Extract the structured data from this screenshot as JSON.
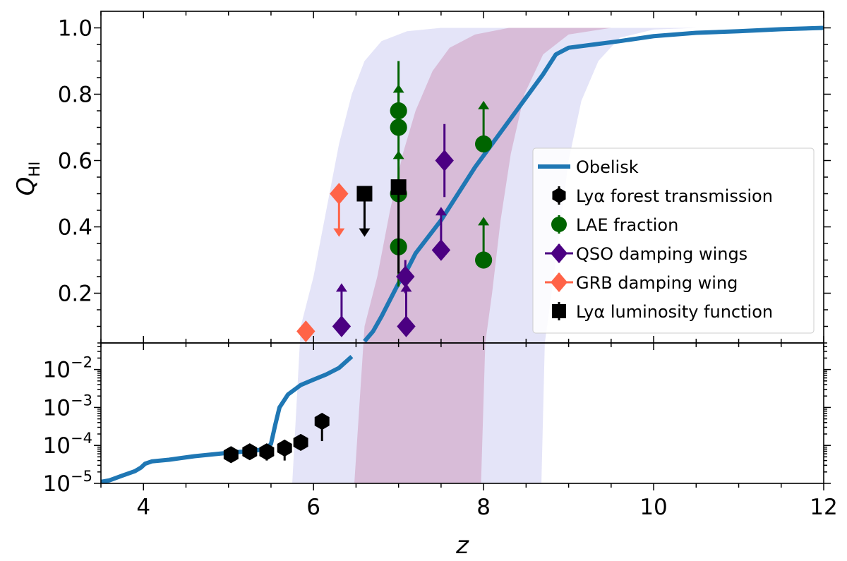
{
  "chart_data": {
    "type": "scatter",
    "xlabel": "z",
    "ylabel_main": "Q",
    "ylabel_sub": "HI",
    "xlim": [
      3.5,
      12
    ],
    "xticks": [
      4,
      6,
      8,
      10,
      12
    ],
    "xtick_labels": [
      "4",
      "6",
      "8",
      "10",
      "12"
    ],
    "top_panel": {
      "scale": "linear",
      "ylim": [
        0.05,
        1.05
      ],
      "yticks": [
        0.2,
        0.4,
        0.6,
        0.8,
        1.0
      ],
      "ytick_labels": [
        "0.2",
        "0.4",
        "0.6",
        "0.8",
        "1.0"
      ]
    },
    "bottom_panel": {
      "scale": "log",
      "ylim": [
        1e-05,
        0.05
      ],
      "yticks": [
        1e-05,
        0.0001,
        0.001,
        0.01
      ],
      "ytick_bases": [
        "10",
        "10",
        "10",
        "10"
      ],
      "ytick_exps": [
        "−5",
        "−4",
        "−3",
        "−2"
      ]
    },
    "colors": {
      "obelisk": "#1f77b4",
      "lya_forest": "#000000",
      "lae": "#006400",
      "qso": "#4b0082",
      "grb": "#ff6347",
      "lya_lf": "#000000",
      "band_outer": "#e4e4f8",
      "band_inner": "#d8bcd8"
    },
    "bands": {
      "outer": {
        "lo": [
          [
            3.5,
            0
          ],
          [
            5.75,
            0
          ],
          [
            5.85,
            0.1
          ],
          [
            6.0,
            0.25
          ],
          [
            6.15,
            0.45
          ],
          [
            6.3,
            0.65
          ],
          [
            6.45,
            0.8
          ],
          [
            6.6,
            0.9
          ],
          [
            6.8,
            0.96
          ],
          [
            7.1,
            0.99
          ],
          [
            7.5,
            1.0
          ],
          [
            12,
            1.0
          ]
        ],
        "hi": [
          [
            3.5,
            0
          ],
          [
            8.68,
            0
          ],
          [
            8.72,
            0.05
          ],
          [
            8.8,
            0.2
          ],
          [
            8.9,
            0.4
          ],
          [
            9.0,
            0.6
          ],
          [
            9.15,
            0.78
          ],
          [
            9.35,
            0.9
          ],
          [
            9.6,
            0.97
          ],
          [
            10.0,
            0.995
          ],
          [
            10.5,
            1.0
          ],
          [
            12,
            1.0
          ]
        ]
      },
      "inner": {
        "lo": [
          [
            3.5,
            0
          ],
          [
            6.48,
            0
          ],
          [
            6.6,
            0.1
          ],
          [
            6.75,
            0.25
          ],
          [
            6.9,
            0.45
          ],
          [
            7.05,
            0.62
          ],
          [
            7.2,
            0.75
          ],
          [
            7.4,
            0.87
          ],
          [
            7.6,
            0.94
          ],
          [
            7.9,
            0.98
          ],
          [
            8.3,
            1.0
          ],
          [
            12,
            1.0
          ]
        ],
        "hi": [
          [
            3.5,
            0
          ],
          [
            7.97,
            0
          ],
          [
            8.02,
            0.05
          ],
          [
            8.1,
            0.2
          ],
          [
            8.2,
            0.42
          ],
          [
            8.32,
            0.62
          ],
          [
            8.48,
            0.8
          ],
          [
            8.7,
            0.92
          ],
          [
            9.0,
            0.98
          ],
          [
            9.5,
            1.0
          ],
          [
            12,
            1.0
          ]
        ]
      }
    },
    "series": [
      {
        "name": "Obelisk",
        "legend_label": "Obelisk",
        "kind": "line",
        "x": [
          3.5,
          3.6,
          3.75,
          3.9,
          3.97,
          4.02,
          4.1,
          4.3,
          4.6,
          5.0,
          5.3,
          5.45,
          5.5,
          5.55,
          5.6,
          5.7,
          5.85,
          6.0,
          6.15,
          6.3,
          6.45,
          6.6,
          6.7,
          6.8,
          6.9,
          7.0,
          7.1,
          7.2,
          7.35,
          7.5,
          7.7,
          7.9,
          8.1,
          8.3,
          8.5,
          8.7,
          8.85,
          9.0,
          9.3,
          9.6,
          10.0,
          10.5,
          11.0,
          11.5,
          12.0
        ],
        "y": [
          1.1e-05,
          1.2e-05,
          1.6e-05,
          2.1e-05,
          2.6e-05,
          3.3e-05,
          3.8e-05,
          4.2e-05,
          5.2e-05,
          6.4e-05,
          7.2e-05,
          8.2e-05,
          0.00011,
          0.00035,
          0.001,
          0.0022,
          0.0039,
          0.0054,
          0.0074,
          0.011,
          0.022,
          0.055,
          0.085,
          0.13,
          0.18,
          0.23,
          0.27,
          0.32,
          0.37,
          0.42,
          0.5,
          0.58,
          0.65,
          0.72,
          0.79,
          0.86,
          0.92,
          0.94,
          0.95,
          0.96,
          0.975,
          0.985,
          0.99,
          0.996,
          1.0
        ]
      },
      {
        "name": "lya_forest",
        "legend_label": "Lyα forest transmission",
        "kind": "points",
        "marker": "hexagon",
        "points": [
          {
            "x": 5.03,
            "y": 5.7e-05,
            "ylo": 4.5e-05,
            "yhi": 7e-05
          },
          {
            "x": 5.25,
            "y": 6.8e-05,
            "ylo": 5.2e-05,
            "yhi": 8.5e-05
          },
          {
            "x": 5.45,
            "y": 6.8e-05,
            "ylo": 4e-05,
            "yhi": 9e-05
          },
          {
            "x": 5.66,
            "y": 8.5e-05,
            "ylo": 4e-05,
            "yhi": 0.00011
          },
          {
            "x": 5.85,
            "y": 0.00012,
            "ylo": 8.5e-05,
            "yhi": 0.000155
          },
          {
            "x": 6.1,
            "y": 0.00043,
            "ylo": 0.00013,
            "yhi": 0.0007
          }
        ]
      },
      {
        "name": "lae",
        "legend_label": "LAE fraction",
        "kind": "points",
        "marker": "circle",
        "points": [
          {
            "x": 7.0,
            "y": 0.75,
            "ylo": 0.6,
            "yhi": 0.9
          },
          {
            "x": 7.0,
            "y": 0.7,
            "arrow": "up",
            "arrow_to": 0.83
          },
          {
            "x": 7.0,
            "y": 0.5,
            "arrow": "up",
            "arrow_to": 0.63
          },
          {
            "x": 7.0,
            "y": 0.34,
            "ylo": 0.22,
            "yhi": 0.49
          },
          {
            "x": 8.0,
            "y": 0.65,
            "arrow": "up",
            "arrow_to": 0.78
          },
          {
            "x": 8.0,
            "y": 0.3,
            "arrow": "up",
            "arrow_to": 0.43
          }
        ]
      },
      {
        "name": "qso",
        "legend_label": "QSO damping wings",
        "kind": "points",
        "marker": "diamond",
        "points": [
          {
            "x": 6.33,
            "y": 0.1,
            "arrow": "up",
            "arrow_to": 0.23
          },
          {
            "x": 7.09,
            "y": 0.1,
            "arrow": "up",
            "arrow_to": 0.23
          },
          {
            "x": 7.08,
            "y": 0.25,
            "ylo": 0.2,
            "yhi": 0.3
          },
          {
            "x": 7.54,
            "y": 0.6,
            "ylo": 0.49,
            "yhi": 0.71
          },
          {
            "x": 7.5,
            "y": 0.33,
            "arrow": "up",
            "arrow_to": 0.46
          }
        ]
      },
      {
        "name": "grb",
        "legend_label": "GRB damping wing",
        "kind": "points",
        "marker": "diamond",
        "points": [
          {
            "x": 5.91,
            "y": 0.085
          },
          {
            "x": 6.3,
            "y": 0.5,
            "arrow": "down",
            "arrow_to": 0.37
          }
        ]
      },
      {
        "name": "lya_lf",
        "legend_label": "Lyα luminosity function",
        "kind": "points",
        "marker": "square",
        "points": [
          {
            "x": 6.6,
            "y": 0.5,
            "arrow": "down",
            "arrow_to": 0.37
          },
          {
            "x": 7.0,
            "y": 0.52,
            "ylo": 0.26,
            "yhi": 0.54
          }
        ]
      }
    ],
    "legend_position": "right, lower half of the top panel"
  }
}
